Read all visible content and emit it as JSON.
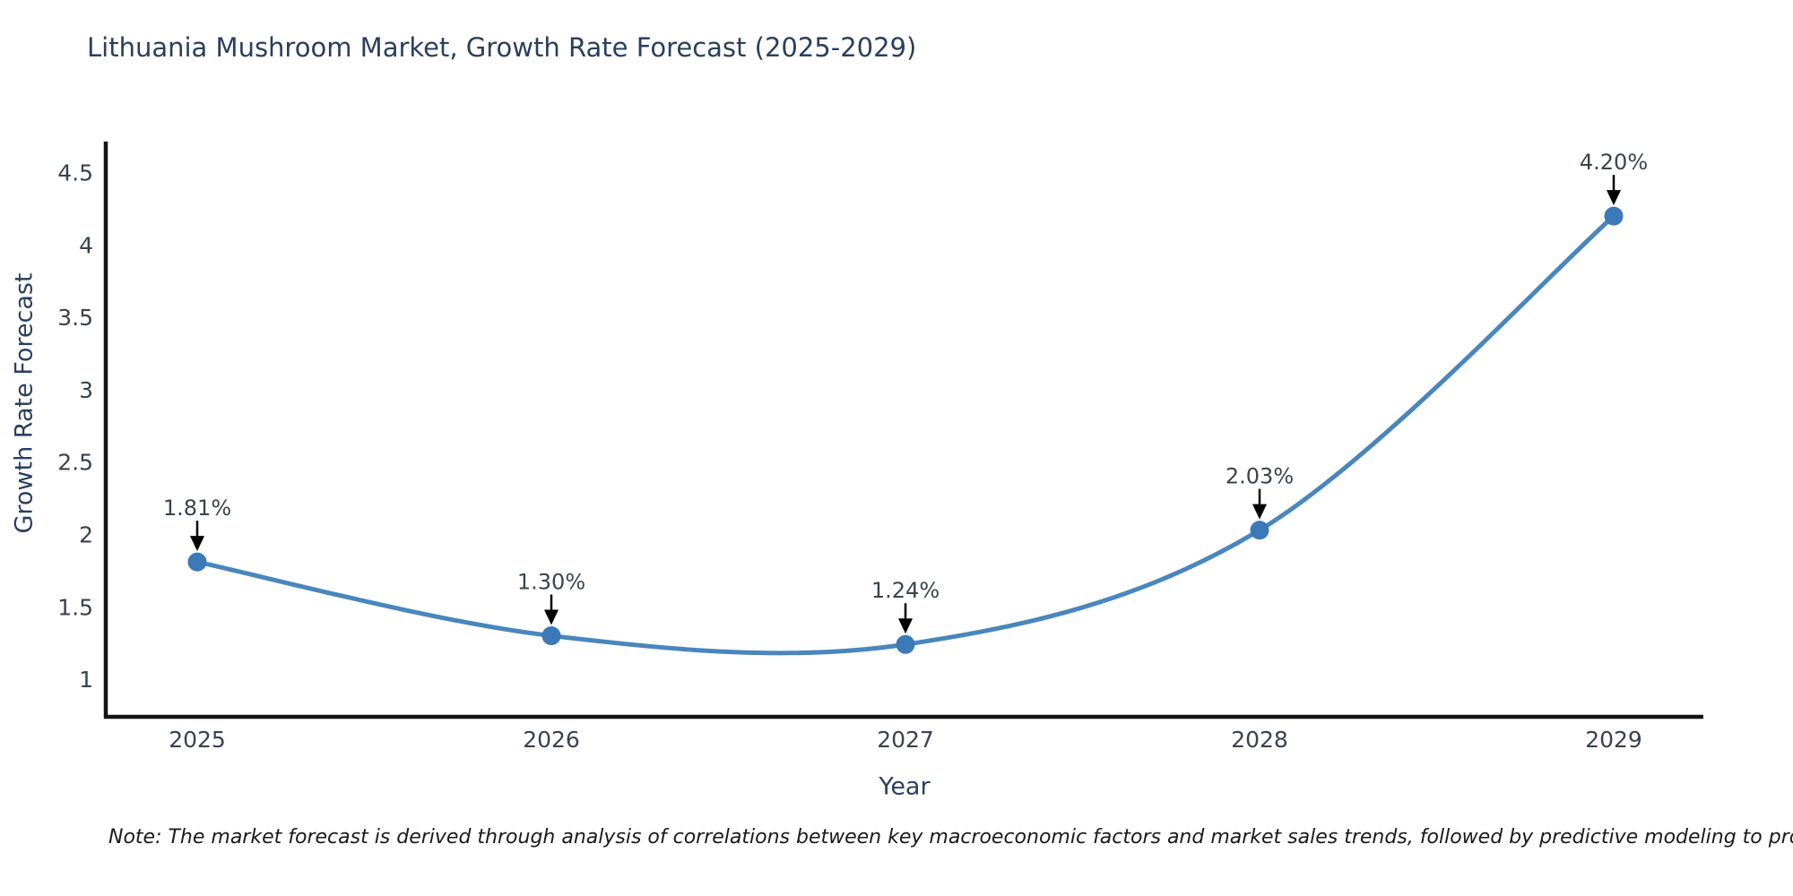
{
  "title": "Lithuania Mushroom Market, Growth Rate Forecast (2025-2029)",
  "note": "Note: The market forecast is derived through analysis of correlations between key macroeconomic factors and market sales trends, followed by predictive modeling to project future sales",
  "chart_data": {
    "type": "line",
    "title": "Lithuania Mushroom Market, Growth Rate Forecast (2025-2029)",
    "xlabel": "Year",
    "ylabel": "Growth Rate Forecast",
    "x": [
      "2025",
      "2026",
      "2027",
      "2028",
      "2029"
    ],
    "series": [
      {
        "name": "Growth Rate Forecast",
        "values": [
          1.81,
          1.3,
          1.24,
          2.03,
          4.2
        ],
        "point_labels": [
          "1.81%",
          "1.30%",
          "1.24%",
          "2.03%",
          "4.20%"
        ]
      }
    ],
    "yticks": [
      1,
      1.5,
      2,
      2.5,
      3,
      3.5,
      4,
      4.5
    ],
    "ylim": [
      0.74,
      4.715
    ],
    "grid": false,
    "legend": "none",
    "line_shape": "spline",
    "annotation_style": "value label above point with downward arrow",
    "colors": {
      "line": "#4986bd",
      "marker": "#3b79b8",
      "axis": "#141414",
      "arrow": "#000000",
      "title_text": "#2a3f5f",
      "tick_text": "#3a4150",
      "annotation_text": "#3d434d"
    }
  }
}
